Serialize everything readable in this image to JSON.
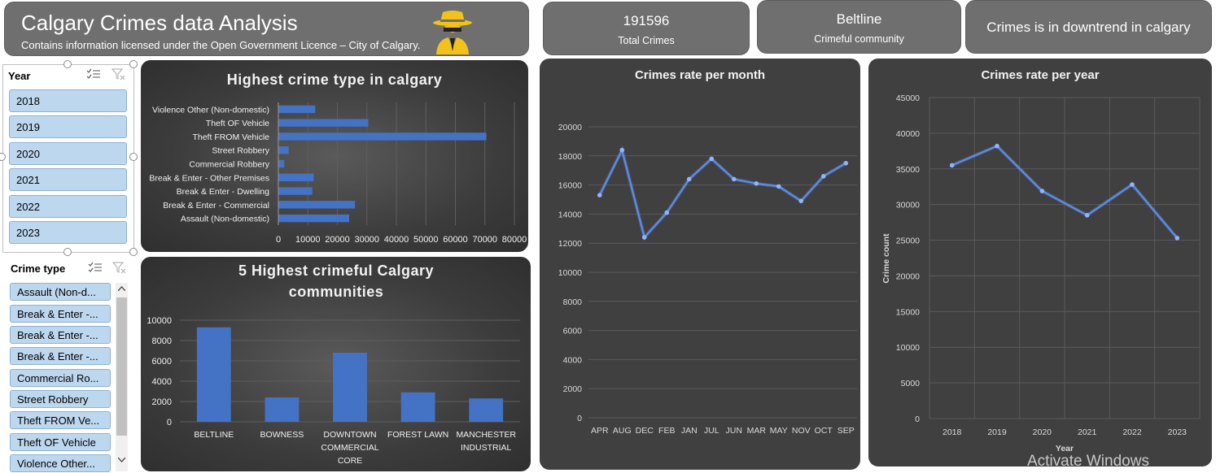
{
  "header": {
    "title": "Calgary Crimes data Analysis",
    "subtitle": "Contains information licensed under the Open Government Licence – City of Calgary."
  },
  "kpis": [
    {
      "value": "191596",
      "label": "Total Crimes"
    },
    {
      "value": "Beltline",
      "label": "Crimeful community"
    },
    {
      "value": "Crimes is in downtrend in calgary",
      "label": ""
    }
  ],
  "year_slicer": {
    "header": "Year",
    "items": [
      "2018",
      "2019",
      "2020",
      "2021",
      "2022",
      "2023"
    ]
  },
  "crime_slicer": {
    "header": "Crime type",
    "items": [
      "Assault (Non-d...",
      "Break & Enter -...",
      "Break & Enter -...",
      "Break & Enter -...",
      "Commercial Ro...",
      "Street Robbery",
      "Theft FROM Ve...",
      "Theft OF Vehicle",
      "Violence Other..."
    ]
  },
  "colors": {
    "accent": "#4472c4",
    "panel_grey": "#6f6f6f",
    "slicer_item": "#bdd7ee",
    "icon_gold": "#f2c11c"
  },
  "watermark": "Activate Windows",
  "chart_data": [
    {
      "type": "bar",
      "orientation": "horizontal",
      "title": "Highest crime type in calgary",
      "categories": [
        "Violence Other (Non-domestic)",
        "Theft OF Vehicle",
        "Theft FROM Vehicle",
        "Street Robbery",
        "Commercial Robbery",
        "Break & Enter - Other Premises",
        "Break & Enter - Dwelling",
        "Break & Enter - Commercial",
        "Assault (Non-domestic)"
      ],
      "values": [
        12500,
        30500,
        70500,
        3500,
        2000,
        12000,
        11500,
        26000,
        24000
      ],
      "xlim": [
        0,
        80000
      ],
      "ticks": [
        "0",
        "10000",
        "20000",
        "30000",
        "40000",
        "50000",
        "60000",
        "70000",
        "80000"
      ]
    },
    {
      "type": "bar",
      "title": "5 Highest crimeful Calgary communities",
      "categories": [
        "BELTLINE",
        "BOWNESS",
        "DOWNTOWN COMMERCIAL CORE",
        "FOREST LAWN",
        "MANCHESTER INDUSTRIAL"
      ],
      "values": [
        9300,
        2400,
        6800,
        2900,
        2300
      ],
      "ylim": [
        0,
        10000
      ],
      "ticks": [
        "0",
        "2000",
        "4000",
        "6000",
        "8000",
        "10000"
      ]
    },
    {
      "type": "line",
      "title": "Crimes rate per month",
      "categories": [
        "APR",
        "AUG",
        "DEC",
        "FEB",
        "JAN",
        "JUL",
        "JUN",
        "MAR",
        "MAY",
        "NOV",
        "OCT",
        "SEP"
      ],
      "values": [
        15300,
        18400,
        12400,
        14100,
        16400,
        17800,
        16400,
        16100,
        15900,
        14900,
        16600,
        17500
      ],
      "ylim": [
        0,
        20000
      ],
      "ticks": [
        "0",
        "2000",
        "4000",
        "6000",
        "8000",
        "10000",
        "12000",
        "14000",
        "16000",
        "18000",
        "20000"
      ]
    },
    {
      "type": "line",
      "title": "Crimes rate per year",
      "xlabel": "Year",
      "ylabel": "Crime count",
      "categories": [
        "2018",
        "2019",
        "2020",
        "2021",
        "2022",
        "2023"
      ],
      "values": [
        35500,
        38200,
        31900,
        28500,
        32800,
        25300
      ],
      "ylim": [
        0,
        45000
      ],
      "ticks": [
        "0",
        "5000",
        "10000",
        "15000",
        "20000",
        "25000",
        "30000",
        "35000",
        "40000",
        "45000"
      ]
    }
  ]
}
